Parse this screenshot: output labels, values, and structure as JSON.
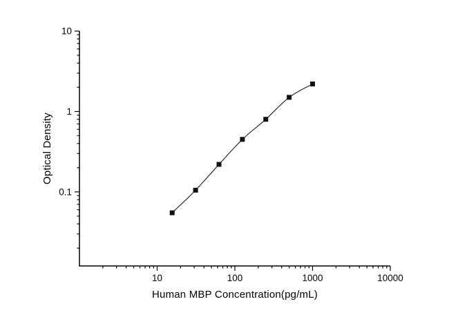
{
  "figure": {
    "background": "#ffffff"
  },
  "chart_data": {
    "type": "line",
    "title": "",
    "xlabel": "Human MBP Concentration(pg/mL)",
    "ylabel": "Optical Density",
    "x_scale": "log",
    "y_scale": "log",
    "xlim": [
      1,
      10000
    ],
    "ylim": [
      0.012,
      10
    ],
    "x": [
      15.6,
      31.2,
      62.5,
      125,
      250,
      500,
      1000
    ],
    "y": [
      0.055,
      0.105,
      0.22,
      0.45,
      0.8,
      1.5,
      2.2
    ],
    "x_major_ticks": [
      10,
      100,
      1000,
      10000
    ],
    "x_tick_labels": [
      "10",
      "100",
      "1000",
      "10000"
    ],
    "y_major_ticks": [
      0.1,
      1,
      10
    ],
    "y_tick_labels": [
      "0.1",
      "1",
      "10"
    ],
    "grid": false,
    "legend": null,
    "marker": "filled-square",
    "marker_color": "#111111",
    "line_color": "#1a1a1a",
    "axis_color": "#000000"
  }
}
